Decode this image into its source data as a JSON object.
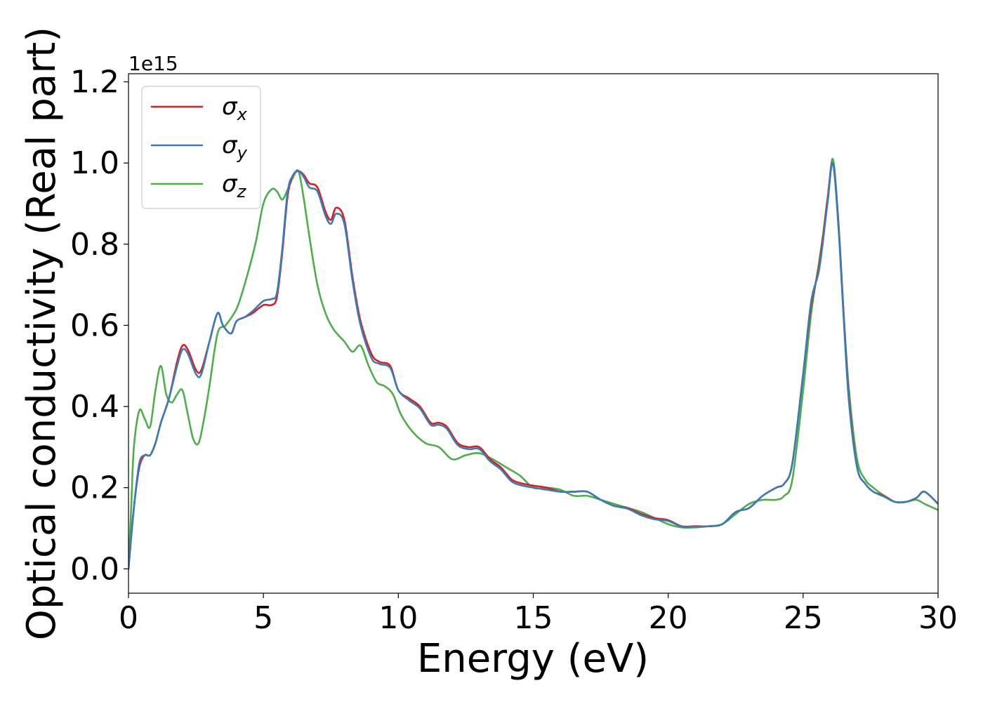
{
  "chart_data": {
    "type": "line",
    "xlabel": "Energy (eV)",
    "ylabel": "Optical conductivity (Real part)",
    "y_offset_label": "1e15",
    "xlim": [
      0,
      30
    ],
    "ylim": [
      -0.06,
      1.22
    ],
    "x_ticks": [
      0,
      5,
      10,
      15,
      20,
      25,
      30
    ],
    "x_tick_labels": [
      "0",
      "5",
      "10",
      "15",
      "20",
      "25",
      "30"
    ],
    "y_ticks": [
      0.0,
      0.2,
      0.4,
      0.6,
      0.8,
      1.0,
      1.2
    ],
    "y_tick_labels": [
      "0.0",
      "0.2",
      "0.4",
      "0.6",
      "0.8",
      "1.0",
      "1.2"
    ],
    "grid": false,
    "legend_position": "top-left",
    "series": [
      {
        "name": "σx",
        "symbol": "σ",
        "subscript": "x",
        "color": "#e41a1c",
        "x": [
          0,
          0.2,
          0.4,
          0.6,
          0.8,
          1.0,
          1.2,
          1.5,
          1.8,
          2.0,
          2.2,
          2.5,
          2.7,
          3.0,
          3.3,
          3.5,
          3.8,
          4.0,
          4.3,
          4.6,
          5.0,
          5.3,
          5.5,
          5.7,
          5.9,
          6.1,
          6.3,
          6.5,
          6.7,
          7.0,
          7.3,
          7.5,
          7.7,
          8.0,
          8.3,
          8.6,
          9.0,
          9.3,
          9.7,
          10.0,
          10.4,
          10.8,
          11.2,
          11.5,
          11.8,
          12.2,
          12.6,
          13.0,
          13.4,
          13.8,
          14.2,
          14.6,
          15.0,
          15.5,
          16.0,
          16.5,
          17.0,
          17.5,
          18.0,
          18.5,
          19.0,
          19.5,
          20.0,
          20.5,
          21.0,
          21.5,
          22.0,
          22.5,
          23.0,
          23.5,
          24.0,
          24.3,
          24.6,
          25.0,
          25.3,
          25.6,
          25.9,
          26.1,
          26.3,
          26.5,
          26.7,
          27.0,
          27.3,
          27.6,
          28.0,
          28.4,
          28.8,
          29.2,
          29.5,
          30.0
        ],
        "values": [
          0.0,
          0.15,
          0.25,
          0.28,
          0.28,
          0.31,
          0.36,
          0.42,
          0.51,
          0.55,
          0.54,
          0.49,
          0.49,
          0.56,
          0.63,
          0.6,
          0.58,
          0.61,
          0.62,
          0.63,
          0.65,
          0.65,
          0.67,
          0.78,
          0.92,
          0.97,
          0.98,
          0.97,
          0.95,
          0.94,
          0.88,
          0.86,
          0.89,
          0.86,
          0.72,
          0.61,
          0.53,
          0.51,
          0.5,
          0.44,
          0.42,
          0.4,
          0.36,
          0.36,
          0.35,
          0.31,
          0.3,
          0.3,
          0.27,
          0.25,
          0.22,
          0.21,
          0.205,
          0.2,
          0.19,
          0.19,
          0.19,
          0.17,
          0.155,
          0.15,
          0.135,
          0.125,
          0.12,
          0.105,
          0.105,
          0.105,
          0.11,
          0.14,
          0.15,
          0.18,
          0.2,
          0.21,
          0.26,
          0.48,
          0.65,
          0.75,
          0.91,
          1.0,
          0.86,
          0.63,
          0.42,
          0.25,
          0.21,
          0.19,
          0.18,
          0.165,
          0.165,
          0.175,
          0.19,
          0.16
        ]
      },
      {
        "name": "σy",
        "symbol": "σ",
        "subscript": "y",
        "color": "#377eb8",
        "x": [
          0,
          0.2,
          0.4,
          0.6,
          0.8,
          1.0,
          1.2,
          1.5,
          1.8,
          2.0,
          2.2,
          2.5,
          2.7,
          3.0,
          3.3,
          3.5,
          3.8,
          4.0,
          4.3,
          4.6,
          5.0,
          5.3,
          5.5,
          5.7,
          5.9,
          6.1,
          6.3,
          6.5,
          6.7,
          7.0,
          7.3,
          7.5,
          7.7,
          8.0,
          8.3,
          8.6,
          9.0,
          9.3,
          9.7,
          10.0,
          10.4,
          10.8,
          11.2,
          11.5,
          11.8,
          12.2,
          12.6,
          13.0,
          13.4,
          13.8,
          14.2,
          14.6,
          15.0,
          15.5,
          16.0,
          16.5,
          17.0,
          17.5,
          18.0,
          18.5,
          19.0,
          19.5,
          20.0,
          20.5,
          21.0,
          21.5,
          22.0,
          22.5,
          23.0,
          23.5,
          24.0,
          24.3,
          24.6,
          25.0,
          25.3,
          25.6,
          25.9,
          26.1,
          26.3,
          26.5,
          26.7,
          27.0,
          27.3,
          27.6,
          28.0,
          28.4,
          28.8,
          29.2,
          29.5,
          30.0
        ],
        "values": [
          0.0,
          0.15,
          0.26,
          0.28,
          0.28,
          0.31,
          0.36,
          0.42,
          0.5,
          0.54,
          0.53,
          0.48,
          0.48,
          0.56,
          0.63,
          0.6,
          0.58,
          0.61,
          0.62,
          0.635,
          0.66,
          0.665,
          0.68,
          0.79,
          0.93,
          0.97,
          0.98,
          0.965,
          0.94,
          0.93,
          0.87,
          0.85,
          0.875,
          0.85,
          0.71,
          0.6,
          0.52,
          0.505,
          0.495,
          0.44,
          0.415,
          0.395,
          0.355,
          0.355,
          0.345,
          0.305,
          0.295,
          0.295,
          0.265,
          0.245,
          0.215,
          0.205,
          0.2,
          0.195,
          0.19,
          0.19,
          0.19,
          0.17,
          0.155,
          0.148,
          0.132,
          0.122,
          0.118,
          0.104,
          0.104,
          0.105,
          0.11,
          0.14,
          0.15,
          0.18,
          0.2,
          0.21,
          0.26,
          0.48,
          0.66,
          0.74,
          0.9,
          1.0,
          0.85,
          0.62,
          0.41,
          0.25,
          0.21,
          0.19,
          0.178,
          0.165,
          0.165,
          0.175,
          0.19,
          0.16
        ]
      },
      {
        "name": "σz",
        "symbol": "σ",
        "subscript": "z",
        "color": "#4daf4a",
        "x": [
          0,
          0.1,
          0.2,
          0.4,
          0.6,
          0.8,
          1.0,
          1.2,
          1.4,
          1.6,
          1.8,
          2.0,
          2.2,
          2.4,
          2.6,
          2.8,
          3.0,
          3.3,
          3.6,
          4.0,
          4.3,
          4.7,
          5.0,
          5.3,
          5.5,
          5.7,
          5.9,
          6.1,
          6.3,
          6.5,
          6.7,
          7.0,
          7.3,
          7.6,
          8.0,
          8.3,
          8.6,
          8.9,
          9.2,
          9.5,
          9.8,
          10.1,
          10.5,
          11.0,
          11.5,
          12.0,
          12.5,
          13.0,
          13.5,
          14.0,
          14.5,
          15.0,
          15.5,
          16.0,
          16.5,
          17.0,
          17.5,
          18.0,
          18.5,
          19.0,
          19.5,
          20.0,
          20.5,
          21.0,
          21.5,
          22.0,
          22.5,
          23.0,
          23.5,
          24.0,
          24.3,
          24.6,
          25.0,
          25.3,
          25.6,
          25.9,
          26.1,
          26.3,
          26.5,
          26.7,
          27.0,
          27.3,
          27.6,
          28.0,
          28.4,
          28.8,
          29.2,
          29.5,
          30.0
        ],
        "values": [
          0.0,
          0.15,
          0.3,
          0.39,
          0.37,
          0.35,
          0.44,
          0.5,
          0.43,
          0.41,
          0.43,
          0.44,
          0.38,
          0.32,
          0.31,
          0.37,
          0.45,
          0.58,
          0.6,
          0.64,
          0.7,
          0.8,
          0.9,
          0.935,
          0.93,
          0.91,
          0.935,
          0.965,
          0.98,
          0.91,
          0.82,
          0.7,
          0.63,
          0.59,
          0.56,
          0.535,
          0.55,
          0.5,
          0.46,
          0.45,
          0.43,
          0.38,
          0.34,
          0.31,
          0.3,
          0.27,
          0.28,
          0.285,
          0.27,
          0.25,
          0.23,
          0.2,
          0.2,
          0.195,
          0.18,
          0.18,
          0.17,
          0.16,
          0.15,
          0.14,
          0.125,
          0.11,
          0.102,
          0.102,
          0.105,
          0.11,
          0.135,
          0.16,
          0.17,
          0.17,
          0.18,
          0.22,
          0.44,
          0.63,
          0.76,
          0.9,
          1.01,
          0.86,
          0.63,
          0.44,
          0.27,
          0.22,
          0.2,
          0.18,
          0.165,
          0.165,
          0.17,
          0.16,
          0.145
        ]
      }
    ]
  }
}
